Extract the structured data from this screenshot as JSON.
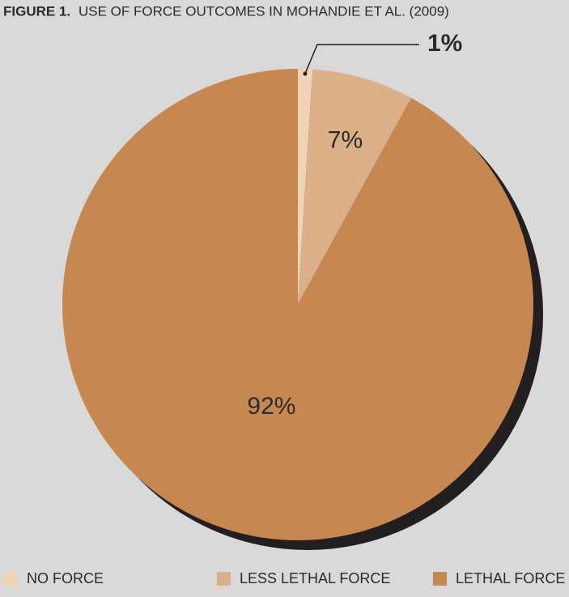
{
  "chart_data": {
    "type": "pie",
    "figure_label": "FIGURE 1.",
    "title": "USE OF FORCE OUTCOMES IN MOHANDIE ET AL. (2009)",
    "categories": [
      "NO FORCE",
      "LESS LETHAL FORCE",
      "LETHAL FORCE"
    ],
    "values": [
      1,
      7,
      92
    ],
    "value_labels": [
      "1%",
      "7%",
      "92%"
    ],
    "colors": [
      "#efd3b5",
      "#dbb088",
      "#c68850"
    ],
    "legend": "bottom"
  }
}
